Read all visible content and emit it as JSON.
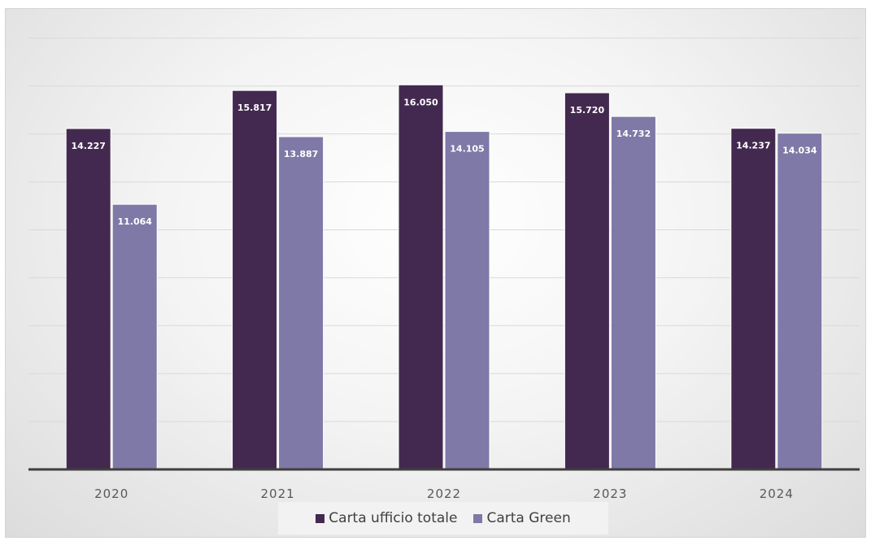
{
  "chart_data": {
    "type": "bar",
    "title": "",
    "xlabel": "",
    "ylabel": "",
    "categories": [
      "2020",
      "2021",
      "2022",
      "2023",
      "2024"
    ],
    "series": [
      {
        "name": "Carta ufficio totale",
        "color": "#43294f",
        "values": [
          14227,
          15817,
          16050,
          15720,
          14237
        ],
        "labels": [
          "14.227",
          "15.817",
          "16.050",
          "15.720",
          "14.237"
        ]
      },
      {
        "name": "Carta Green",
        "color": "#7e79a6",
        "values": [
          11064,
          13887,
          14105,
          14732,
          14034
        ],
        "labels": [
          "11.064",
          "13.887",
          "14.105",
          "14.732",
          "14.034"
        ]
      }
    ],
    "ylim": [
      0,
      18000
    ],
    "grid": true,
    "y_tick_labels_shown": false,
    "legend_position": "bottom"
  }
}
